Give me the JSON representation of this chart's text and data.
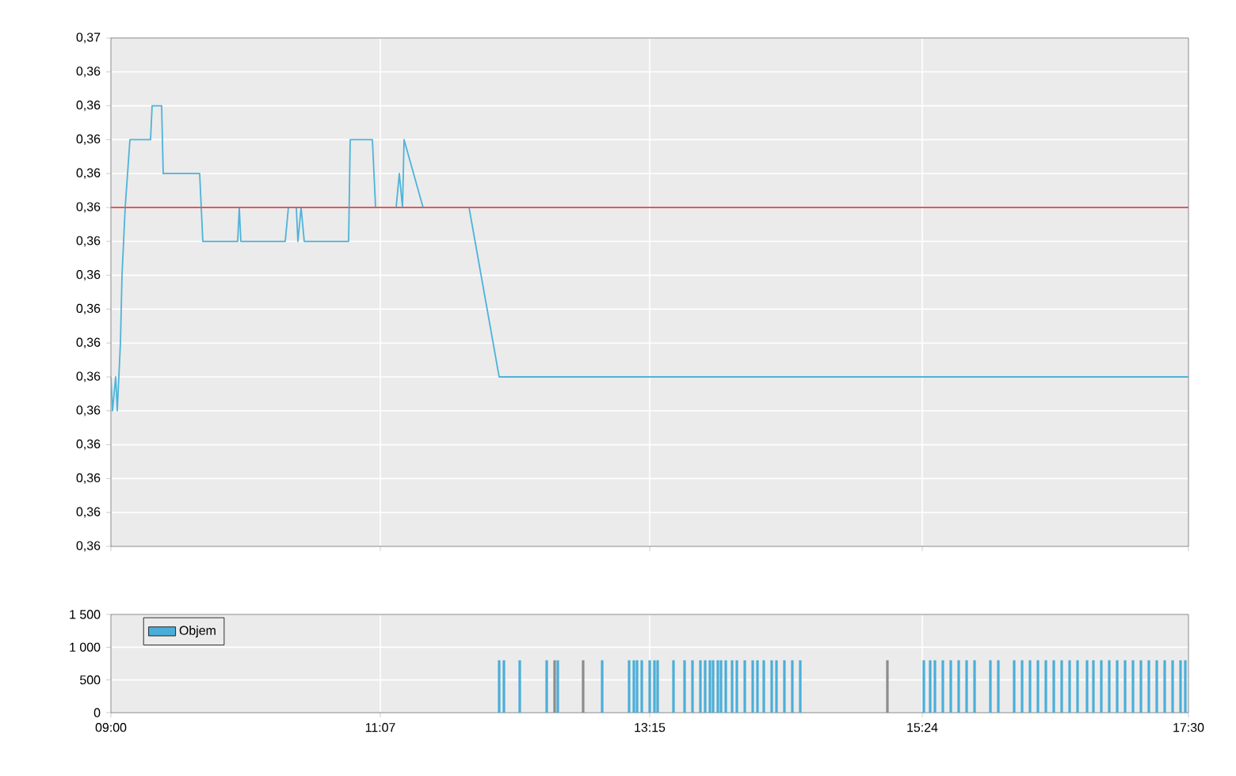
{
  "chart_data": [
    {
      "type": "line",
      "x": [
        9.0,
        9.0125,
        9.0375,
        9.05,
        9.075,
        9.0875,
        9.1125,
        9.15,
        9.3125,
        9.325,
        9.4,
        9.4125,
        9.7,
        9.725,
        10.0,
        10.0125,
        10.025,
        10.375,
        10.4,
        10.4625,
        10.475,
        10.5,
        10.525,
        10.875,
        10.8875,
        11.0625,
        11.0875,
        11.25,
        11.275,
        11.3,
        11.3125,
        11.4625,
        11.825,
        12.0625,
        17.5
      ],
      "series": [
        {
          "color": "#4eb3d9",
          "values": [
            0.3612,
            0.3608,
            0.3612,
            0.3608,
            0.3616,
            0.3624,
            0.3632,
            0.364,
            0.364,
            0.3644,
            0.3644,
            0.3636,
            0.3636,
            0.3628,
            0.3628,
            0.3632,
            0.3628,
            0.3628,
            0.3632,
            0.3632,
            0.3628,
            0.3632,
            0.3628,
            0.3628,
            0.364,
            0.364,
            0.3632,
            0.3632,
            0.3636,
            0.3632,
            0.364,
            0.3632,
            0.3632,
            0.3612,
            0.3612
          ]
        }
      ],
      "xlim": [
        9,
        17.5
      ],
      "xticks": [
        {
          "value": 9,
          "label": null
        },
        {
          "value": 11.125,
          "label": null
        },
        {
          "value": 13.25,
          "label": null
        },
        {
          "value": 15.4,
          "label": null
        },
        {
          "value": 17.5,
          "label": null
        }
      ],
      "ylim": [
        0.3592,
        0.3652
      ],
      "yticks": [
        {
          "value": 0.3592,
          "label": "0,36"
        },
        {
          "value": 0.3596,
          "label": "0,36"
        },
        {
          "value": 0.36,
          "label": "0,36"
        },
        {
          "value": 0.3604,
          "label": "0,36"
        },
        {
          "value": 0.3608,
          "label": "0,36"
        },
        {
          "value": 0.3612,
          "label": "0,36"
        },
        {
          "value": 0.3616,
          "label": "0,36"
        },
        {
          "value": 0.362,
          "label": "0,36"
        },
        {
          "value": 0.3624,
          "label": "0,36"
        },
        {
          "value": 0.3628,
          "label": "0,36"
        },
        {
          "value": 0.3632,
          "label": "0,36"
        },
        {
          "value": 0.3636,
          "label": "0,36"
        },
        {
          "value": 0.364,
          "label": "0,36"
        },
        {
          "value": 0.3644,
          "label": "0,36"
        },
        {
          "value": 0.3648,
          "label": "0,36"
        },
        {
          "value": 0.3652,
          "label": "0,37"
        }
      ],
      "ref_lines": [
        {
          "axis": "y",
          "value": 0.3632,
          "color": "#e05a5a"
        }
      ],
      "grid": true,
      "tick_labels": "y"
    },
    {
      "type": "bar",
      "x": [
        12.0625,
        12.1,
        12.225,
        12.4375,
        12.5,
        12.525,
        12.725,
        12.875,
        13.0875,
        13.125,
        13.15,
        13.1875,
        13.25,
        13.2875,
        13.3125,
        13.4375,
        13.525,
        13.5875,
        13.65,
        13.6875,
        13.725,
        13.75,
        13.7875,
        13.8125,
        13.85,
        13.9,
        13.9375,
        14.0,
        14.0625,
        14.1,
        14.15,
        14.2125,
        14.25,
        14.3125,
        14.375,
        14.4375,
        15.125,
        15.4125,
        15.4625,
        15.5,
        15.5625,
        15.625,
        15.6875,
        15.75,
        15.8125,
        15.9375,
        16.0,
        16.125,
        16.1875,
        16.25,
        16.3125,
        16.375,
        16.4375,
        16.5,
        16.5625,
        16.625,
        16.7,
        16.75,
        16.8125,
        16.875,
        16.9375,
        17.0,
        17.0625,
        17.125,
        17.1875,
        17.25,
        17.3125,
        17.375,
        17.4375,
        17.475
      ],
      "series": [
        {
          "name": "Objem",
          "color": "#4aaed8",
          "colors": [
            "#4aaed8",
            "#4aaed8",
            "#4aaed8",
            "#4aaed8",
            "#8c8c8c",
            "#4aaed8",
            "#8c8c8c",
            "#4aaed8",
            "#4aaed8",
            "#4aaed8",
            "#4aaed8",
            "#4aaed8",
            "#4aaed8",
            "#4aaed8",
            "#4aaed8",
            "#4aaed8",
            "#4aaed8",
            "#4aaed8",
            "#4aaed8",
            "#4aaed8",
            "#4aaed8",
            "#4aaed8",
            "#4aaed8",
            "#4aaed8",
            "#4aaed8",
            "#4aaed8",
            "#4aaed8",
            "#4aaed8",
            "#4aaed8",
            "#4aaed8",
            "#4aaed8",
            "#4aaed8",
            "#4aaed8",
            "#4aaed8",
            "#4aaed8",
            "#4aaed8",
            "#8c8c8c",
            "#4aaed8",
            "#4aaed8",
            "#4aaed8",
            "#4aaed8",
            "#4aaed8",
            "#4aaed8",
            "#4aaed8",
            "#4aaed8",
            "#4aaed8",
            "#4aaed8",
            "#4aaed8",
            "#4aaed8",
            "#4aaed8",
            "#4aaed8",
            "#4aaed8",
            "#4aaed8",
            "#4aaed8",
            "#4aaed8",
            "#4aaed8",
            "#4aaed8",
            "#4aaed8",
            "#4aaed8",
            "#4aaed8",
            "#4aaed8",
            "#4aaed8",
            "#4aaed8",
            "#4aaed8",
            "#4aaed8",
            "#4aaed8",
            "#4aaed8",
            "#4aaed8",
            "#4aaed8",
            "#4aaed8"
          ],
          "values": [
            800,
            800,
            800,
            800,
            800,
            800,
            800,
            800,
            800,
            800,
            800,
            800,
            800,
            800,
            800,
            800,
            800,
            800,
            800,
            800,
            800,
            800,
            800,
            800,
            800,
            800,
            800,
            800,
            800,
            800,
            800,
            800,
            800,
            800,
            800,
            800,
            800,
            800,
            800,
            800,
            800,
            800,
            800,
            800,
            800,
            800,
            800,
            800,
            800,
            800,
            800,
            800,
            800,
            800,
            800,
            800,
            800,
            800,
            800,
            800,
            800,
            800,
            800,
            800,
            800,
            800,
            800,
            800,
            800,
            800
          ]
        }
      ],
      "xlim": [
        9,
        17.5
      ],
      "xticks": [
        {
          "value": 9,
          "label": "09:00"
        },
        {
          "value": 11.125,
          "label": "11:07"
        },
        {
          "value": 13.25,
          "label": "13:15"
        },
        {
          "value": 15.4,
          "label": "15:24"
        },
        {
          "value": 17.5,
          "label": "17:30"
        }
      ],
      "ylim": [
        0,
        1500
      ],
      "yticks": [
        {
          "value": 0,
          "label": "0"
        },
        {
          "value": 500,
          "label": "500"
        },
        {
          "value": 1000,
          "label": "1 000"
        },
        {
          "value": 1500,
          "label": "1 500"
        }
      ],
      "grid": true,
      "legend": "top left"
    }
  ]
}
